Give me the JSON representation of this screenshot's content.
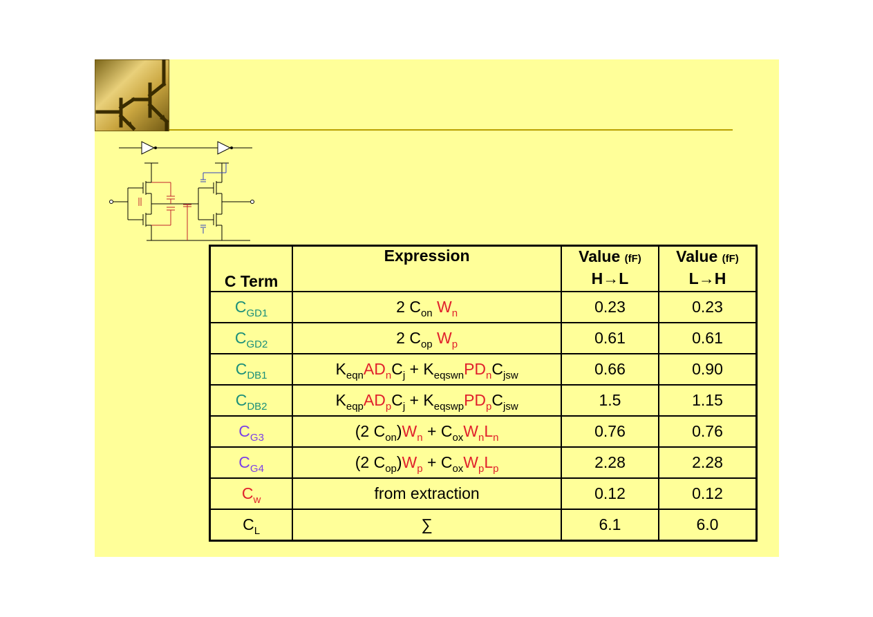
{
  "table": {
    "headers": {
      "term": "C Term",
      "expression": "Expression",
      "val_hl": {
        "label": "Value",
        "unit": "(fF)",
        "dir": "H→L"
      },
      "val_lh": {
        "label": "Value",
        "unit": "(fF)",
        "dir": "L→H"
      }
    },
    "rows": [
      {
        "term": {
          "main": "C",
          "sub": "GD1"
        },
        "expr": {
          "a": "2 C",
          "a_sub": "on",
          "b": "W",
          "b_sub": "n"
        },
        "hl": "0.23",
        "lh": "0.23"
      },
      {
        "term": {
          "main": "C",
          "sub": "GD2"
        },
        "expr": {
          "a": "2 C",
          "a_sub": "op",
          "b": "W",
          "b_sub": "p"
        },
        "hl": "0.61",
        "lh": "0.61"
      },
      {
        "term": {
          "main": "C",
          "sub": "DB1"
        },
        "expr": {
          "k1": "K",
          "k1_sub": "eqn",
          "ad": "AD",
          "ad_sub": "n",
          "cj": "C",
          "cj_sub": "j",
          "plus": " + ",
          "k2": "K",
          "k2_sub": "eqswn",
          "pd": "PD",
          "pd_sub": "n",
          "cjsw": "C",
          "cjsw_sub": "jsw"
        },
        "hl": "0.66",
        "lh": "0.90"
      },
      {
        "term": {
          "main": "C",
          "sub": "DB2"
        },
        "expr": {
          "k1": "K",
          "k1_sub": "eqp",
          "ad": "AD",
          "ad_sub": "p",
          "cj": "C",
          "cj_sub": "j",
          "plus": " + ",
          "k2": "K",
          "k2_sub": "eqswp",
          "pd": "PD",
          "pd_sub": "p",
          "cjsw": "C",
          "cjsw_sub": "jsw"
        },
        "hl": "1.5",
        "lh": "1.15"
      },
      {
        "term": {
          "main": "C",
          "sub": "G3"
        },
        "expr": {
          "open": "(2 C",
          "open_sub": "on",
          "close": ")",
          "w1": "W",
          "w1_sub": "n",
          "plus": " + C",
          "plus_sub": "ox",
          "w2": "W",
          "w2_sub": "n",
          "l": "L",
          "l_sub": "n"
        },
        "hl": "0.76",
        "lh": "0.76"
      },
      {
        "term": {
          "main": "C",
          "sub": "G4"
        },
        "expr": {
          "open": "(2 C",
          "open_sub": "op",
          "close": ")",
          "w1": "W",
          "w1_sub": "p",
          "plus": " + C",
          "plus_sub": "ox",
          "w2": "W",
          "w2_sub": "p",
          "l": "L",
          "l_sub": "p"
        },
        "hl": "2.28",
        "lh": "2.28"
      },
      {
        "term": {
          "main": "C",
          "sub": "w"
        },
        "expr": {
          "text": "from extraction"
        },
        "hl": "0.12",
        "lh": "0.12"
      },
      {
        "term": {
          "main": "C",
          "sub": "L"
        },
        "expr": {
          "text": "∑"
        },
        "hl": "6.1",
        "lh": "6.0"
      }
    ]
  },
  "colors": {
    "slide_background": "#ffff99",
    "title_rule": "#b8a000",
    "drain_gate_terms": "#1b8f7a",
    "gate_terms": "#7b3fe8",
    "design_params": "#e0202c"
  },
  "icons": {
    "logo": "transistor-logo-icon",
    "circuit": "inverter-chain-schematic-icon"
  }
}
